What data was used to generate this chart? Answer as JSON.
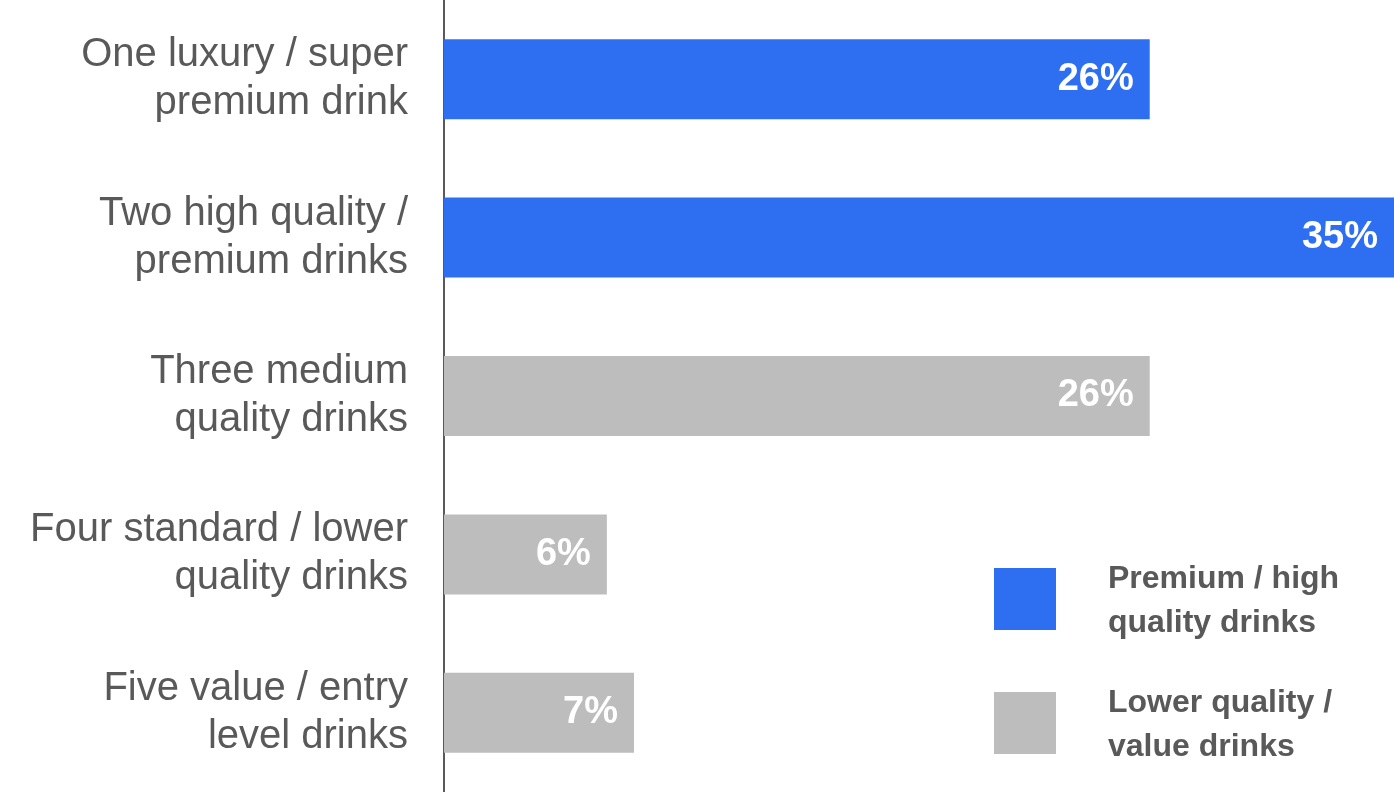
{
  "chart_data": {
    "type": "bar",
    "orientation": "horizontal",
    "categories": [
      "One luxury / super\npremium drink",
      "Two high quality /\npremium drinks",
      "Three medium\nquality drinks",
      "Four standard / lower\nquality drinks",
      "Five value / entry\nlevel drinks"
    ],
    "series": [
      {
        "name": "Premium / high quality drinks",
        "color": "#2e6ff2",
        "values": [
          26,
          35,
          null,
          null,
          null
        ],
        "value_labels": [
          "26%",
          "35%",
          null,
          null,
          null
        ]
      },
      {
        "name": "Lower quality / value drinks",
        "color": "#bdbdbd",
        "values": [
          null,
          null,
          26,
          6,
          7
        ],
        "value_labels": [
          null,
          null,
          "26%",
          "6%",
          "7%"
        ]
      }
    ],
    "xlim": [
      0,
      35
    ],
    "tick_labels": "y",
    "legend": "bottom right"
  }
}
